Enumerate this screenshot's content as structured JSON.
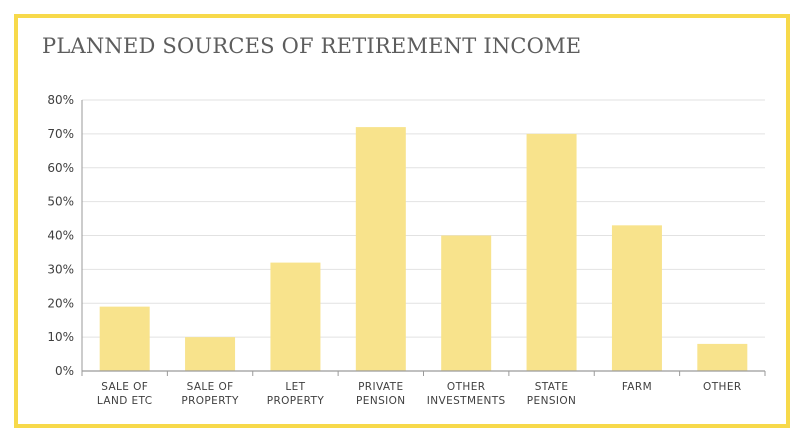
{
  "title": "PLANNED SOURCES OF RETIREMENT INCOME",
  "colors": {
    "frame": "#f7d94a",
    "bar": "#f8e38c",
    "grid": "#e2e2e2",
    "axis": "#9a9a9a",
    "text": "#3f3f3f",
    "title": "#5d5d5d"
  },
  "chart_data": {
    "type": "bar",
    "title": "PLANNED SOURCES OF RETIREMENT INCOME",
    "xlabel": "",
    "ylabel": "",
    "ylim": [
      0,
      80
    ],
    "yticks": [
      "0%",
      "10%",
      "20%",
      "30%",
      "40%",
      "50%",
      "60%",
      "70%",
      "80%"
    ],
    "grid": true,
    "categories": [
      [
        "SALE OF",
        "LAND ETC"
      ],
      [
        "SALE OF",
        "PROPERTY"
      ],
      [
        "LET",
        "PROPERTY"
      ],
      [
        "PRIVATE",
        "PENSION"
      ],
      [
        "OTHER",
        "INVESTMENTS"
      ],
      [
        "STATE",
        "PENSION"
      ],
      [
        "FARM"
      ],
      [
        "OTHER"
      ]
    ],
    "values": [
      19,
      10,
      32,
      72,
      40,
      70,
      43,
      8
    ]
  }
}
